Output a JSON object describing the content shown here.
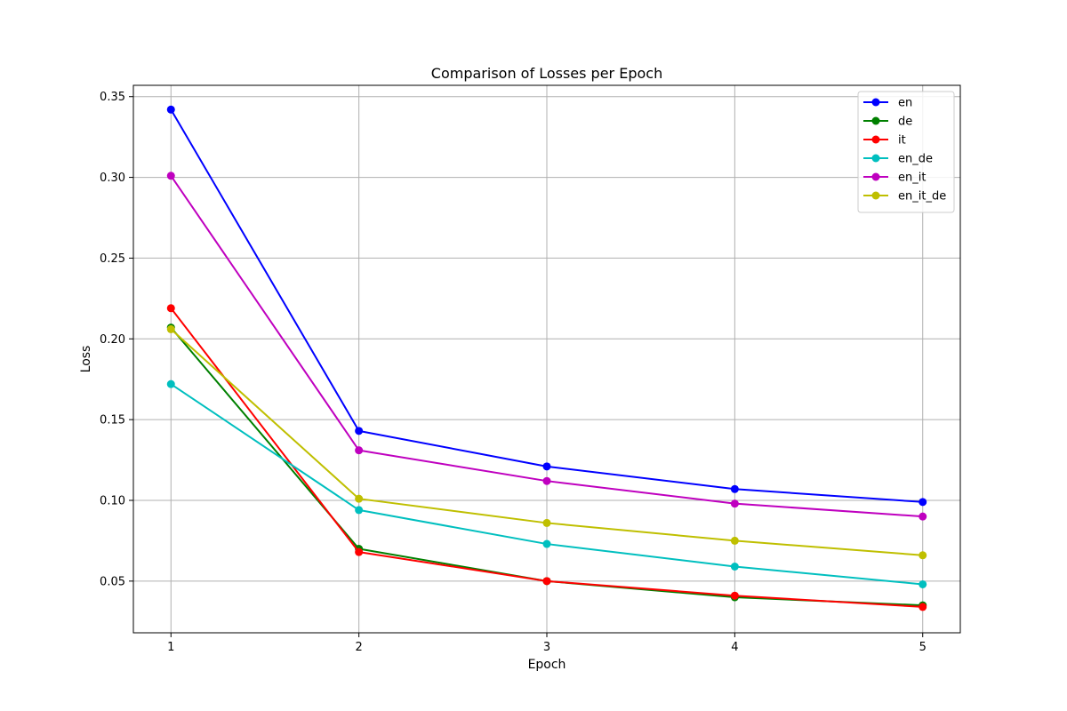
{
  "chart_data": {
    "type": "line",
    "title": "Comparison of Losses per Epoch",
    "xlabel": "Epoch",
    "ylabel": "Loss",
    "x": [
      1,
      2,
      3,
      4,
      5
    ],
    "xticks": [
      "1",
      "2",
      "3",
      "4",
      "5"
    ],
    "yticks": [
      "0.05",
      "0.10",
      "0.15",
      "0.20",
      "0.25",
      "0.30",
      "0.35"
    ],
    "ytick_values": [
      0.05,
      0.1,
      0.15,
      0.2,
      0.25,
      0.3,
      0.35
    ],
    "xlim": [
      0.8,
      5.2
    ],
    "ylim": [
      0.018,
      0.357
    ],
    "grid": true,
    "legend_position": "top-right",
    "series": [
      {
        "name": "en",
        "color": "#0000ff",
        "values": [
          0.342,
          0.143,
          0.121,
          0.107,
          0.099
        ]
      },
      {
        "name": "de",
        "color": "#008000",
        "values": [
          0.207,
          0.07,
          0.05,
          0.04,
          0.035
        ]
      },
      {
        "name": "it",
        "color": "#ff0000",
        "values": [
          0.219,
          0.068,
          0.05,
          0.041,
          0.034
        ]
      },
      {
        "name": "en_de",
        "color": "#00bfbf",
        "values": [
          0.172,
          0.094,
          0.073,
          0.059,
          0.048
        ]
      },
      {
        "name": "en_it",
        "color": "#bf00bf",
        "values": [
          0.301,
          0.131,
          0.112,
          0.098,
          0.09
        ]
      },
      {
        "name": "en_it_de",
        "color": "#bfbf00",
        "values": [
          0.206,
          0.101,
          0.086,
          0.075,
          0.066
        ]
      }
    ]
  }
}
